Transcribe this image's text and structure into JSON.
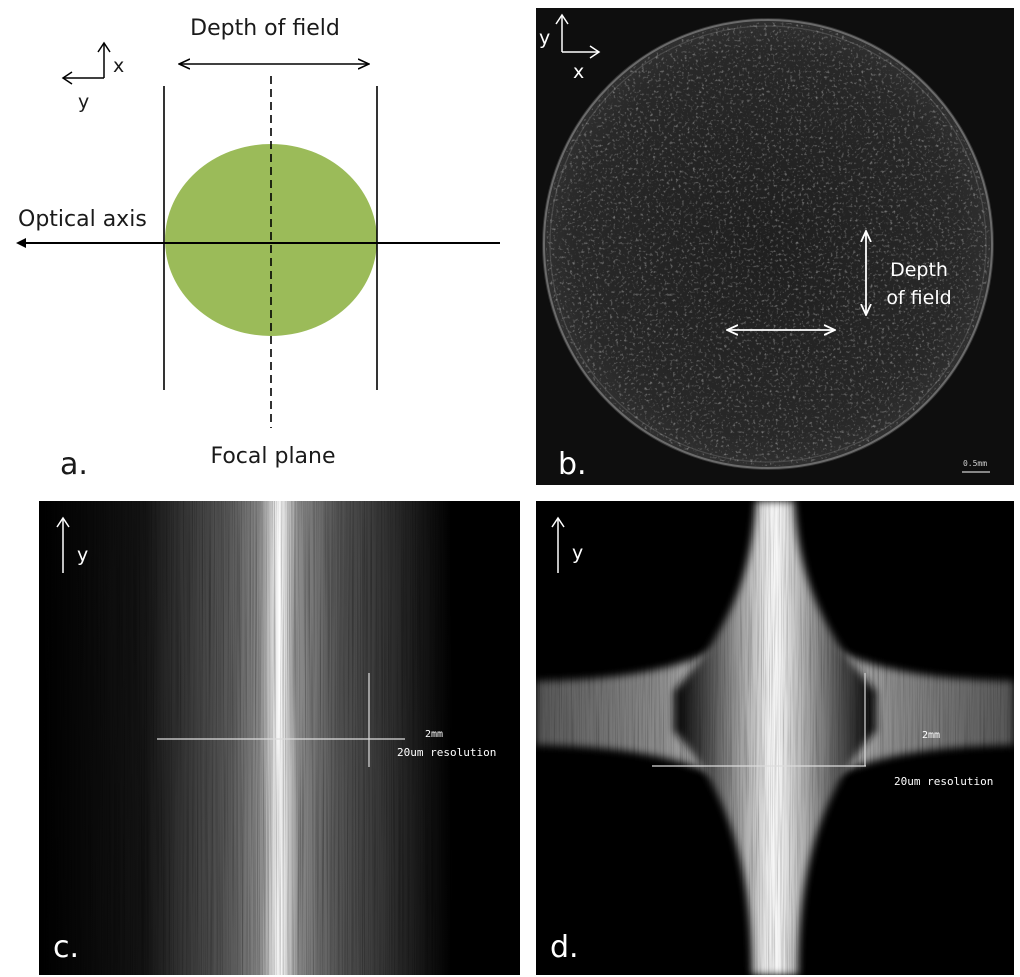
{
  "panel_a": {
    "letter": "a.",
    "depth_of_field": "Depth of field",
    "optical_axis": "Optical axis",
    "focal_plane": "Focal plane",
    "axis_x": "x",
    "axis_y": "y",
    "colors": {
      "sphere": "#9bbb59",
      "ink": "#000000"
    }
  },
  "panel_b": {
    "letter": "b.",
    "axis_x": "x",
    "axis_y": "y",
    "depth_line1": "Depth",
    "depth_line2": "of field",
    "scale_label": "0.5mm"
  },
  "panel_c": {
    "letter": "c.",
    "axis_y": "y",
    "scale_2mm": "2mm",
    "resolution": "20um resolution"
  },
  "panel_d": {
    "letter": "d.",
    "axis_y": "y",
    "scale_2mm": "2mm",
    "resolution": "20um resolution"
  }
}
